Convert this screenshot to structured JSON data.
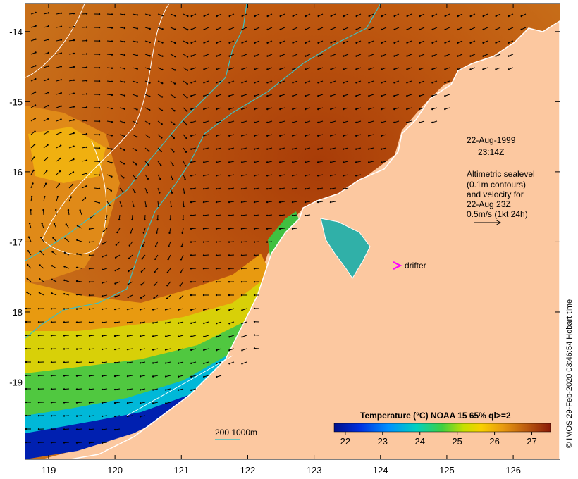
{
  "map": {
    "lon_ticks": [
      "119",
      "120",
      "121",
      "122",
      "123",
      "124",
      "125",
      "126"
    ],
    "lat_ticks": [
      "-14",
      "-15",
      "-16",
      "-17",
      "-18",
      "-19"
    ],
    "lon_range": [
      118.65,
      126.7
    ],
    "lat_range": [
      -20.1,
      -13.6
    ],
    "datetime_line1": "22-Aug-1999",
    "datetime_line2": "23:14Z",
    "altimetry_note": [
      "Altimetric sealevel",
      "(0.1m contours)",
      "and velocity for",
      "22-Aug 23Z",
      "0.5m/s (1kt 24h)"
    ],
    "drifter_label": "drifter",
    "depth_label": "200  1000m",
    "credit": "© IMOS 29-Feb-2020 03:46:54 Hobart time"
  },
  "legend": {
    "title": "Temperature (°C) NOAA 15 65% ql>=2",
    "ticks": [
      "22",
      "23",
      "24",
      "25",
      "26",
      "27"
    ],
    "range": [
      21.7,
      27.5
    ]
  },
  "colors": {
    "land": "#fcc8a0",
    "warm": "#b84a0c",
    "contour": "#ffffff",
    "isobath": "#3fc0c0",
    "drifter": "#ff00ff"
  }
}
